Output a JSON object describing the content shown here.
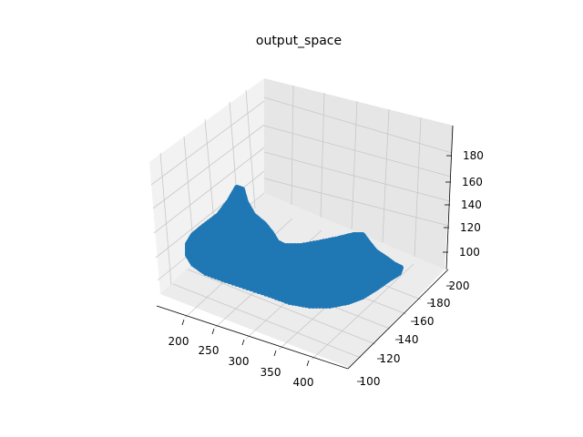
{
  "chart_data": {
    "type": "scatter",
    "title": "output_space",
    "xlabel": "",
    "ylabel": "",
    "zlabel": "",
    "projection": "3d",
    "grid": true,
    "legend": "none",
    "color": "#1f77b4",
    "pane_color": "#f2f2f2",
    "x_ticks": [
      "200",
      "250",
      "300",
      "350",
      "400"
    ],
    "y_ticks": [
      "100",
      "120",
      "140",
      "160",
      "180",
      "200"
    ],
    "z_ticks": [
      "100",
      "120",
      "140",
      "160",
      "180"
    ],
    "xlim": [
      175,
      435
    ],
    "ylim": [
      95,
      205
    ],
    "zlim": [
      95,
      195
    ],
    "surface_description": "dense point cloud forming a curved sheet",
    "peak_region": {
      "x": 250,
      "y": 140,
      "z": 140
    },
    "ridge_region": {
      "x": 400,
      "y": 120,
      "z": 110
    },
    "low_region": {
      "x": 320,
      "y": 100,
      "z": 100
    }
  }
}
